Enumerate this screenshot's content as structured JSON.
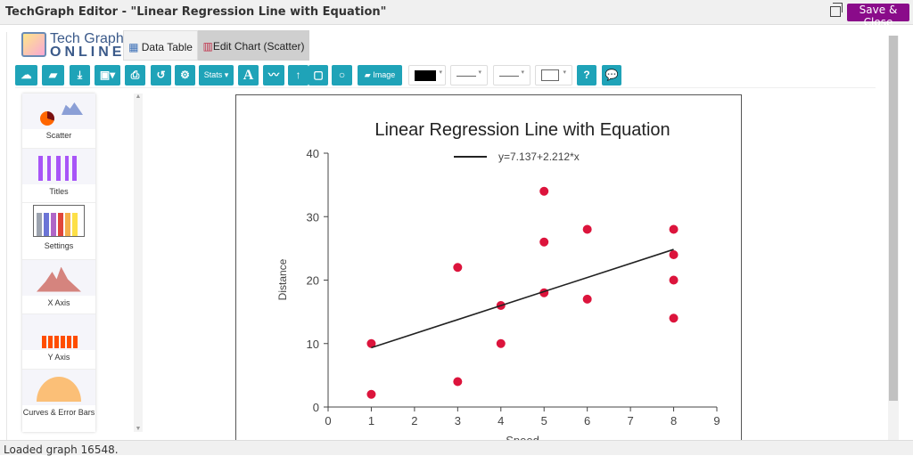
{
  "window": {
    "title": "TechGraph Editor - \"Linear Regression Line with Equation\"",
    "save_close": "Save & Close"
  },
  "logo": {
    "line1": "Tech Graph",
    "line2": "ONLINE"
  },
  "tabs": [
    {
      "label": "Data Table",
      "icon": "table-icon"
    },
    {
      "label": "Edit Chart (Scatter)",
      "icon": "bar-chart-icon"
    }
  ],
  "toolbar": {
    "stats": "Stats ▾",
    "text": "A",
    "image": "Image"
  },
  "sidebar": {
    "items": [
      {
        "label": "Scatter"
      },
      {
        "label": "Titles"
      },
      {
        "label": "Settings"
      },
      {
        "label": "X Axis"
      },
      {
        "label": "Y Axis"
      },
      {
        "label": "Curves & Error Bars"
      }
    ]
  },
  "status": "Loaded graph 16548.",
  "colors": {
    "accent": "#1fa3b8",
    "save": "#8a0b8a",
    "points": "#dc143c"
  },
  "chart_data": {
    "type": "scatter",
    "title": "Linear Regression Line with Equation",
    "xlabel": "Speed",
    "ylabel": "Distance",
    "xlim": [
      0,
      9
    ],
    "ylim": [
      0,
      40
    ],
    "xticks": [
      "0",
      "1",
      "2",
      "3",
      "4",
      "5",
      "6",
      "7",
      "8",
      "9"
    ],
    "yticks": [
      "0",
      "10",
      "20",
      "30",
      "40"
    ],
    "grid": false,
    "legend": "top",
    "points": [
      [
        1,
        10
      ],
      [
        1,
        2
      ],
      [
        3,
        22
      ],
      [
        3,
        4
      ],
      [
        4,
        16
      ],
      [
        4,
        10
      ],
      [
        5,
        34
      ],
      [
        5,
        26
      ],
      [
        5,
        18
      ],
      [
        6,
        28
      ],
      [
        6,
        17
      ],
      [
        8,
        28
      ],
      [
        8,
        24
      ],
      [
        8,
        20
      ],
      [
        8,
        14
      ]
    ],
    "regression": {
      "label": "y=7.137+2.212*x",
      "intercept": 7.137,
      "slope": 2.212,
      "x_range": [
        1,
        8
      ]
    }
  }
}
